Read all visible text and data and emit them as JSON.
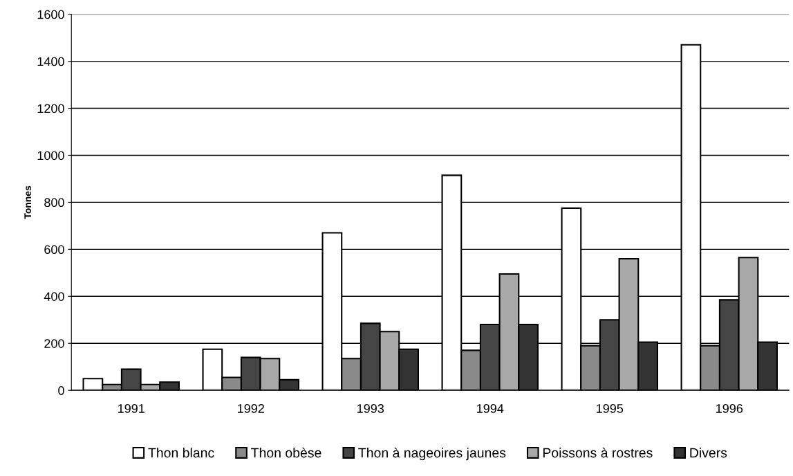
{
  "chart_data": {
    "type": "bar",
    "ylabel": "Tonnes",
    "categories": [
      "1991",
      "1992",
      "1993",
      "1994",
      "1995",
      "1996"
    ],
    "series": [
      {
        "name": "Thon blanc",
        "color": "#ffffff",
        "values": [
          50,
          175,
          670,
          915,
          775,
          1470
        ]
      },
      {
        "name": "Thon obèse",
        "color": "#8a8a8a",
        "values": [
          25,
          55,
          135,
          170,
          190,
          190
        ]
      },
      {
        "name": "Thon à nageoires jaunes",
        "color": "#454545",
        "values": [
          90,
          140,
          285,
          280,
          300,
          385
        ]
      },
      {
        "name": "Poissons à rostres",
        "color": "#a8a8a8",
        "values": [
          25,
          135,
          250,
          495,
          560,
          565
        ]
      },
      {
        "name": "Divers",
        "color": "#333333",
        "values": [
          35,
          45,
          175,
          280,
          205,
          205
        ]
      }
    ],
    "ylim": [
      0,
      1600
    ],
    "yticks": [
      0,
      200,
      400,
      600,
      800,
      1000,
      1200,
      1400,
      1600
    ],
    "grid": "y",
    "legend": "bottom"
  }
}
